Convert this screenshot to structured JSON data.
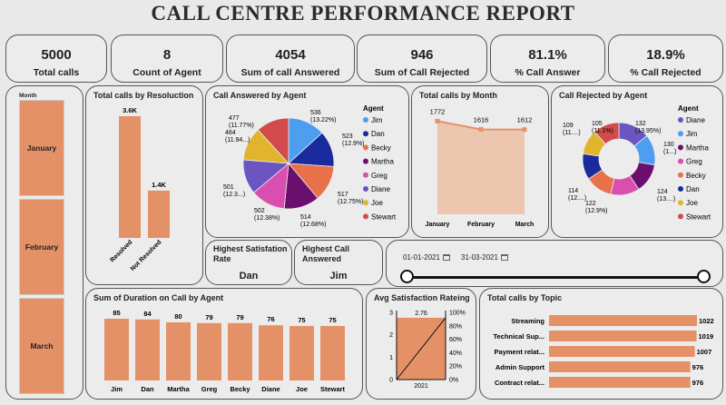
{
  "title": "CALL CENTRE PERFORMANCE REPORT",
  "kpis": [
    {
      "value": "5000",
      "label": "Total calls"
    },
    {
      "value": "8",
      "label": "Count of Agent"
    },
    {
      "value": "4054",
      "label": "Sum of call Answered"
    },
    {
      "value": "946",
      "label": "Sum of Call Rejected"
    },
    {
      "value": "81.1%",
      "label": "% Call Answer"
    },
    {
      "value": "18.9%",
      "label": "% Call Rejected"
    }
  ],
  "month_slicer": {
    "header": "Month",
    "items": [
      "January",
      "February",
      "March"
    ]
  },
  "cards": {
    "satisfaction": {
      "title": "Highest Satisfation Rate",
      "value": "Dan"
    },
    "answered": {
      "title": "Highest Call Answered",
      "value": "Jim"
    }
  },
  "date_slicer": {
    "start": "01-01-2021",
    "end": "31-03-2021"
  },
  "colors": {
    "bar": "#e59168",
    "panel": "#ececec",
    "border": "#555555"
  },
  "chart_data": [
    {
      "id": "resolution",
      "type": "bar",
      "title": "Total calls by Resoluction",
      "categories": [
        "Resolved",
        "Not Resolved"
      ],
      "values": [
        3600,
        1400
      ],
      "data_labels": [
        "3.6K",
        "1.4K"
      ]
    },
    {
      "id": "answered_agent",
      "type": "pie",
      "title": "Call Answered by Agent",
      "legend_title": "Agent",
      "labels": [
        "Jim",
        "Dan",
        "Becky",
        "Martha",
        "Greg",
        "Diane",
        "Joe",
        "Stewart"
      ],
      "values": [
        536,
        523,
        517,
        514,
        502,
        501,
        484,
        477
      ],
      "data_labels": [
        "536 (13.22%)",
        "523 (12.9%)",
        "517 (12.75%)",
        "514 (12.68%)",
        "502 (12.38%)",
        "501 (12.3...)",
        "484 (11.94...)",
        "477 (11.77%)"
      ],
      "colors": [
        "#4e9ef0",
        "#1a2b9e",
        "#e8714a",
        "#6b0f6e",
        "#d94fb0",
        "#6a55c2",
        "#e0b52c",
        "#d24b4b"
      ]
    },
    {
      "id": "calls_month",
      "type": "area",
      "title": "Total calls by Month",
      "categories": [
        "January",
        "February",
        "March"
      ],
      "values": [
        1772,
        1616,
        1612
      ]
    },
    {
      "id": "rejected_agent",
      "type": "pie",
      "title": "Call Rejected by Agent",
      "legend_title": "Agent",
      "labels": [
        "Diane",
        "Jim",
        "Martha",
        "Greg",
        "Becky",
        "Dan",
        "Joe",
        "Stewart"
      ],
      "values": [
        132,
        130,
        124,
        122,
        114,
        109,
        105,
        110
      ],
      "data_labels": [
        "132 (13.95%)",
        "130 (1...)",
        "124 (13....)",
        "122 (12.9%)",
        "114 (12....)",
        "109 (11....)",
        "105 (11.1%)",
        ""
      ],
      "colors": [
        "#6a55c2",
        "#4e9ef0",
        "#6b0f6e",
        "#d94fb0",
        "#e8714a",
        "#1a2b9e",
        "#e0b52c",
        "#d24b4b"
      ]
    },
    {
      "id": "duration_agent",
      "type": "bar",
      "title": "Sum of Duration on Call by Agent",
      "categories": [
        "Jim",
        "Dan",
        "Martha",
        "Greg",
        "Becky",
        "Diane",
        "Joe",
        "Stewart"
      ],
      "values": [
        85,
        84,
        80,
        79,
        79,
        76,
        75,
        75
      ]
    },
    {
      "id": "avg_satisfaction",
      "type": "bar",
      "title": "Avg Satisfaction Rateing",
      "categories": [
        "2021"
      ],
      "values": [
        2.76
      ],
      "ylim": [
        0,
        3
      ],
      "y_ticks": [
        "0",
        "1",
        "2",
        "3"
      ],
      "y2_ticks": [
        "0%",
        "20%",
        "40%",
        "60%",
        "80%",
        "100%"
      ]
    },
    {
      "id": "topic",
      "type": "bar",
      "orientation": "horizontal",
      "title": "Total calls by Topic",
      "categories": [
        "Streaming",
        "Technical Sup...",
        "Payment relat...",
        "Admin Support",
        "Contract relat..."
      ],
      "values": [
        1022,
        1019,
        1007,
        976,
        976
      ]
    }
  ]
}
